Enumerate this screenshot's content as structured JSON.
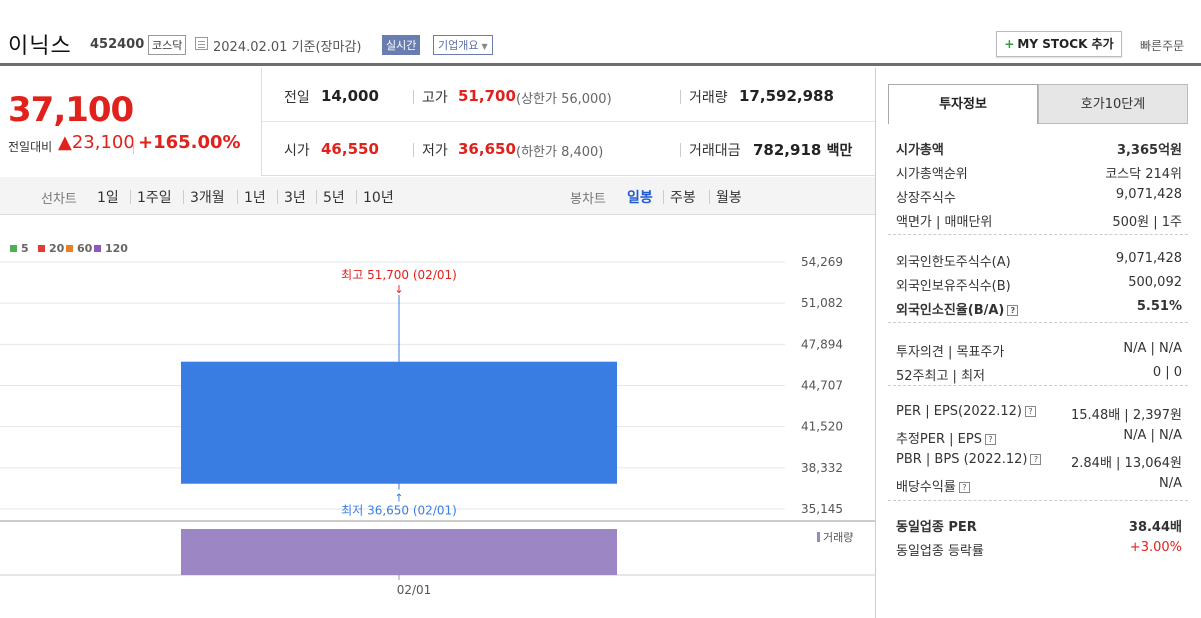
{
  "header": {
    "stock_name": "이닉스",
    "stock_code": "452400",
    "market": "코스닥",
    "date": "2024.02.01  기준(장마감)",
    "realtime": "실시간",
    "corp_info": "기업개요",
    "mystock": "MY STOCK 추가",
    "quick_order": "빠른주문"
  },
  "summary": {
    "price": "37,100",
    "diff_label": "전일대비",
    "diff_value": "▲23,100",
    "diff_pct": "+165.00%",
    "prev_close_label": "전일",
    "prev_close": "14,000",
    "high_label": "고가",
    "high": "51,700",
    "upper_limit": "(상한가 56,000)",
    "volume_label": "거래량",
    "volume": "17,592,988",
    "open_label": "시가",
    "open": "46,550",
    "low_label": "저가",
    "low": "36,650",
    "lower_limit": "(하한가 8,400)",
    "amount_label": "거래대금",
    "amount": "782,918",
    "amount_unit": "백만"
  },
  "periods": {
    "line_label": "선차트",
    "line_items": [
      "1일",
      "1주일",
      "3개월",
      "1년",
      "3년",
      "5년",
      "10년"
    ],
    "candle_label": "봉차트",
    "candle_items": [
      "일봉",
      "주봉",
      "월봉"
    ],
    "selected": "일봉"
  },
  "colors": {
    "up": "#e0211c",
    "candle": "#3a7de2",
    "volume": "#9c86c4",
    "accent": "#1f5bd1"
  },
  "chart_data": {
    "type": "candlestick",
    "legend": [
      {
        "name": "5",
        "color": "#4caf50"
      },
      {
        "name": "20",
        "color": "#e53935"
      },
      {
        "name": "60",
        "color": "#ef7d22"
      },
      {
        "name": "120",
        "color": "#8e57c4"
      }
    ],
    "x": [
      "02/01"
    ],
    "open": [
      46550
    ],
    "high": [
      51700
    ],
    "low": [
      36650
    ],
    "close": [
      37100
    ],
    "volume": [
      17592988
    ],
    "y_ticks": [
      54269,
      51082,
      47894,
      44707,
      41520,
      38332,
      35145
    ],
    "y_tick_labels": [
      "54,269",
      "51,082",
      "47,894",
      "44,707",
      "41,520",
      "38,332",
      "35,145"
    ],
    "ylim": [
      35145,
      54269
    ],
    "high_annotation": "최고 51,700 (02/01)",
    "low_annotation": "최저 36,650 (02/01)",
    "volume_label": "거래량",
    "x_tick_label": "02/01"
  },
  "right_panel": {
    "tab_active": "투자정보",
    "tab_inactive": "호가10단계",
    "rows1": [
      {
        "k": "시가총액",
        "v": "3,365억원"
      },
      {
        "k": "시가총액순위",
        "v": "코스닥 214위"
      },
      {
        "k": "상장주식수",
        "v": "9,071,428"
      },
      {
        "k": "액면가 | 매매단위",
        "v": "500원 | 1주"
      }
    ],
    "rows2": [
      {
        "k": "외국인한도주식수(A)",
        "v": "9,071,428"
      },
      {
        "k": "외국인보유주식수(B)",
        "v": "500,092"
      },
      {
        "k": "외국인소진율(B/A)",
        "v": "5.51%"
      }
    ],
    "rows3": [
      {
        "k": "투자의견 | 목표주가",
        "v": "N/A | N/A"
      },
      {
        "k": "52주최고 | 최저",
        "v": "0 | 0"
      }
    ],
    "rows4": [
      {
        "k": "PER | EPS(2022.12)",
        "v": "15.48배 | 2,397원"
      },
      {
        "k": "추정PER | EPS",
        "v": "N/A | N/A"
      },
      {
        "k": "PBR | BPS (2022.12)",
        "v": "2.84배 | 13,064원"
      },
      {
        "k": "배당수익률",
        "v": "N/A"
      }
    ],
    "rows5": [
      {
        "k": "동일업종 PER",
        "v": "38.44배"
      },
      {
        "k": "동일업종 등락률",
        "v": "+3.00%"
      }
    ]
  }
}
